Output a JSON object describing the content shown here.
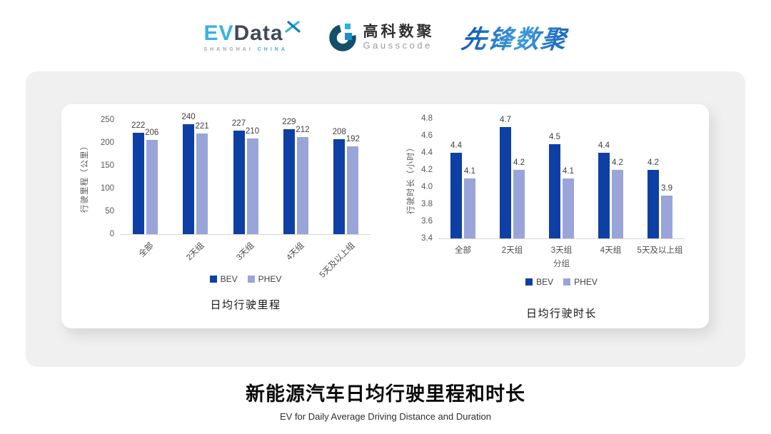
{
  "header": {
    "evdata": {
      "ev": "EV",
      "data": "Data",
      "sub_left": "SHANGHAI",
      "sub_right": "CHINA"
    },
    "gausscode": {
      "cn": "高科数聚",
      "en": "Gausscode"
    },
    "xianfeng": {
      "text": "先锋数聚"
    }
  },
  "colors": {
    "bev": "#0e3fa5",
    "phev": "#99a5d8",
    "accent_cyan": "#38b1e4",
    "gausscode_dark": "#134f6b",
    "gausscode_cyan": "#29b5e0",
    "gausscode_blue": "#1f8dcb"
  },
  "chart_data": [
    {
      "type": "bar",
      "title": "日均行驶里程",
      "ylabel": "行驶里程（公里）",
      "xlabel": "",
      "categories": [
        "全部",
        "2天组",
        "3天组",
        "4天组",
        "5天及以上组"
      ],
      "series": [
        {
          "name": "BEV",
          "values": [
            222,
            240,
            227,
            229,
            208
          ],
          "labels": [
            "222",
            "240",
            "227",
            "229",
            "208"
          ]
        },
        {
          "name": "PHEV",
          "values": [
            206,
            221,
            210,
            212,
            192
          ],
          "labels": [
            "206",
            "221",
            "210",
            "212",
            "192"
          ]
        }
      ],
      "ylim": [
        0,
        250
      ],
      "yticks": [
        "0",
        "50",
        "100",
        "150",
        "200",
        "250"
      ],
      "legend_position": "bottom",
      "grid": false,
      "x_label_rotation": 45
    },
    {
      "type": "bar",
      "title": "日均行驶时长",
      "ylabel": "行驶时长（小时）",
      "xlabel": "分组",
      "categories": [
        "全部",
        "2天组",
        "3天组",
        "4天组",
        "5天及以上组"
      ],
      "series": [
        {
          "name": "BEV",
          "values": [
            4.4,
            4.7,
            4.5,
            4.4,
            4.2
          ],
          "labels": [
            "4.4",
            "4.7",
            "4.5",
            "4.4",
            "4.2"
          ]
        },
        {
          "name": "PHEV",
          "values": [
            4.1,
            4.2,
            4.1,
            4.2,
            3.9
          ],
          "labels": [
            "4.1",
            "4.2",
            "4.1",
            "4.2",
            "3.9"
          ]
        }
      ],
      "ylim": [
        3.4,
        4.8
      ],
      "yticks": [
        "3.4",
        "3.6",
        "3.8",
        "4.0",
        "4.2",
        "4.4",
        "4.6",
        "4.8"
      ],
      "legend_position": "bottom",
      "grid": false,
      "x_label_rotation": 0
    }
  ],
  "footer": {
    "title": "新能源汽车日均行驶里程和时长",
    "subtitle": "EV for Daily Average Driving Distance and Duration"
  }
}
